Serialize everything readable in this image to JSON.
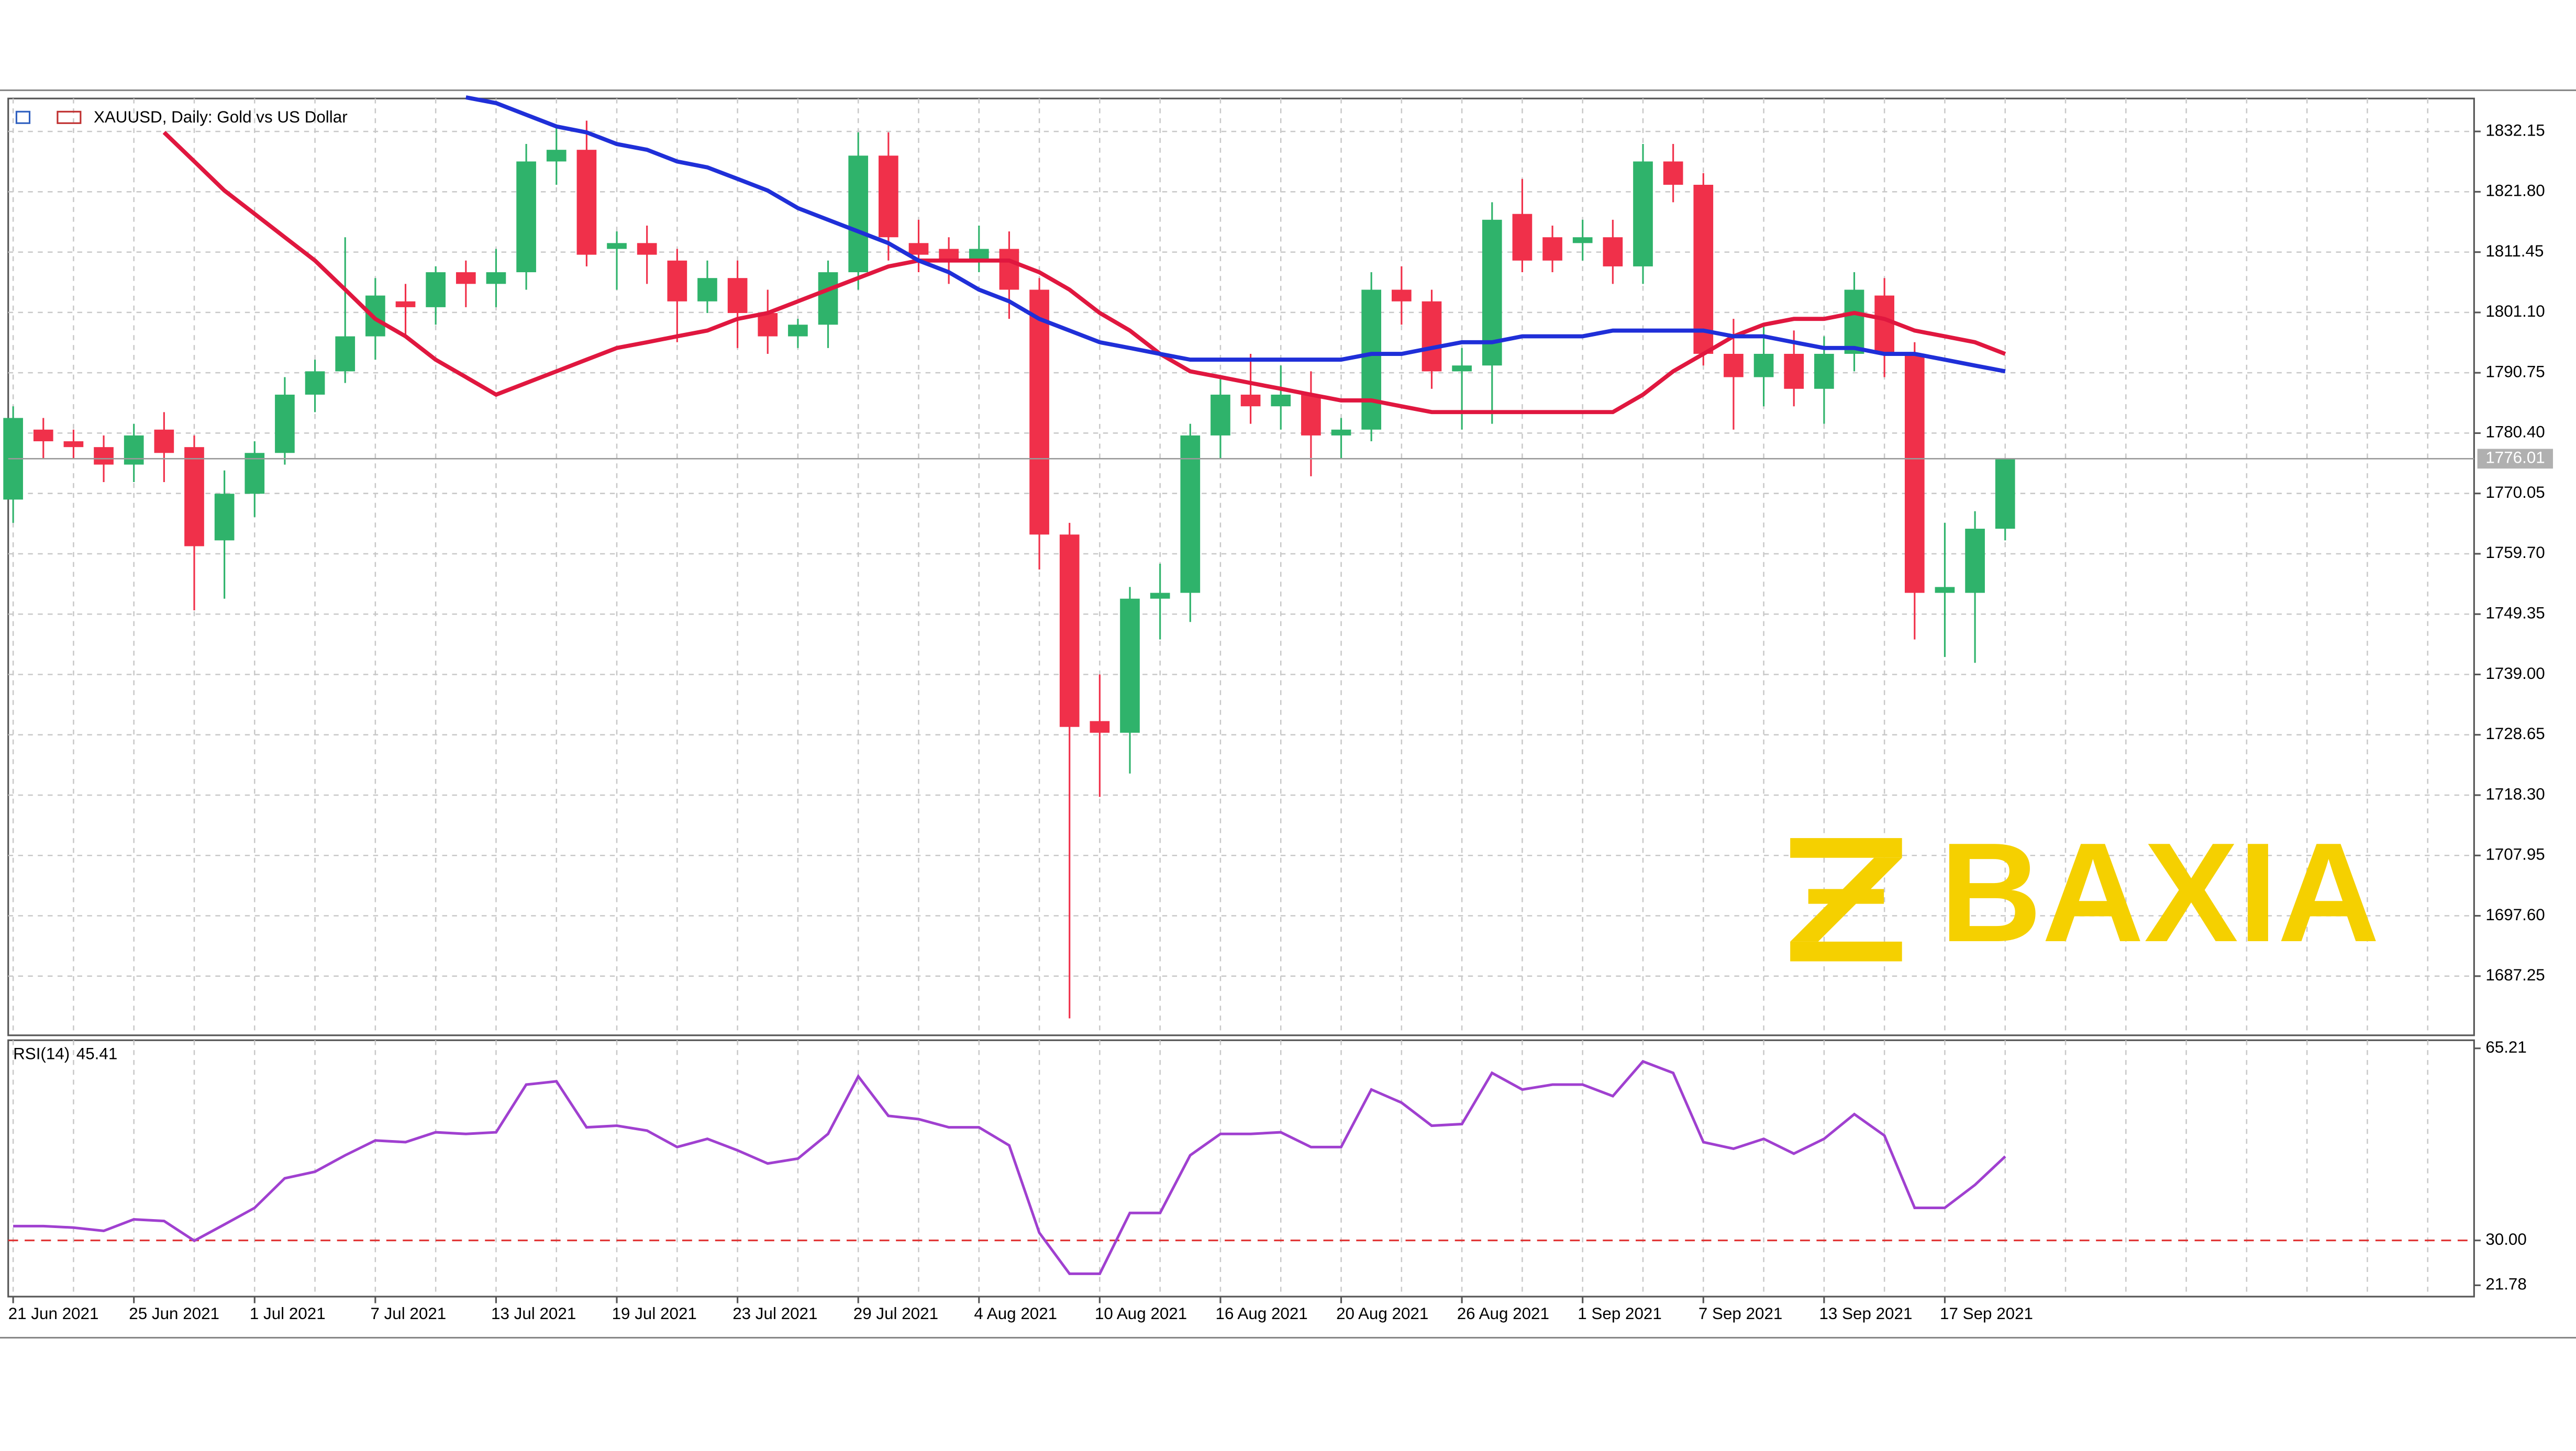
{
  "chart_data": [
    {
      "type": "candlestick",
      "title": "XAUUSD, Daily: Gold vs US Dollar",
      "watermark": "BAXIA",
      "categories": [
        "21 Jun 2021",
        null,
        null,
        null,
        "25 Jun 2021",
        null,
        null,
        null,
        "1 Jul 2021",
        null,
        null,
        null,
        "7 Jul 2021",
        null,
        null,
        null,
        "13 Jul 2021",
        null,
        null,
        null,
        "19 Jul 2021",
        null,
        null,
        null,
        "23 Jul 2021",
        null,
        null,
        null,
        "29 Jul 2021",
        null,
        null,
        null,
        "4 Aug 2021",
        null,
        null,
        null,
        "10 Aug 2021",
        null,
        null,
        null,
        "16 Aug 2021",
        null,
        null,
        null,
        "20 Aug 2021",
        null,
        null,
        null,
        "26 Aug 2021",
        null,
        null,
        null,
        "1 Sep 2021",
        null,
        null,
        null,
        "7 Sep 2021",
        null,
        null,
        null,
        "13 Sep 2021",
        null,
        null,
        null,
        "17 Sep 2021",
        null,
        null
      ],
      "open": [
        1769,
        1781,
        1779,
        1778,
        1775,
        1781,
        1778,
        1762,
        1770,
        1777,
        1787,
        1791,
        1797,
        1803,
        1802,
        1808,
        1806,
        1808,
        1827,
        1829,
        1812,
        1813,
        1810,
        1803,
        1807,
        1801,
        1797,
        1799,
        1808,
        1828,
        1813,
        1812,
        1810,
        1812,
        1805,
        1763,
        1731,
        1729,
        1752,
        1753,
        1780,
        1787,
        1785,
        1787,
        1780,
        1781,
        1805,
        1803,
        1791,
        1792,
        1818,
        1814,
        1813,
        1814,
        1809,
        1827,
        1823,
        1794,
        1790,
        1794,
        1788,
        1794,
        1804,
        1794,
        1753,
        1753,
        1764
      ],
      "high": [
        1785,
        1783,
        1781,
        1780,
        1782,
        1784,
        1780,
        1774,
        1779,
        1790,
        1793,
        1814,
        1807,
        1806,
        1809,
        1810,
        1812,
        1830,
        1833,
        1834,
        1815,
        1816,
        1812,
        1810,
        1810,
        1805,
        1800,
        1810,
        1832,
        1832,
        1817,
        1814,
        1816,
        1815,
        1807,
        1765,
        1739,
        1754,
        1758,
        1782,
        1790,
        1794,
        1792,
        1791,
        1783,
        1808,
        1809,
        1805,
        1795,
        1820,
        1824,
        1816,
        1817,
        1817,
        1830,
        1830,
        1825,
        1800,
        1799,
        1798,
        1797,
        1808,
        1807,
        1796,
        1765,
        1767,
        1776
      ],
      "low": [
        1765,
        1776,
        1776,
        1772,
        1772,
        1772,
        1750,
        1752,
        1766,
        1775,
        1784,
        1789,
        1793,
        1797,
        1799,
        1802,
        1802,
        1805,
        1823,
        1809,
        1805,
        1806,
        1796,
        1801,
        1795,
        1794,
        1795,
        1795,
        1805,
        1810,
        1808,
        1806,
        1808,
        1800,
        1757,
        1680,
        1718,
        1722,
        1745,
        1748,
        1776,
        1782,
        1781,
        1773,
        1776,
        1779,
        1799,
        1788,
        1781,
        1782,
        1808,
        1808,
        1810,
        1806,
        1806,
        1820,
        1792,
        1781,
        1785,
        1785,
        1782,
        1791,
        1790,
        1745,
        1742,
        1741,
        1762
      ],
      "close": [
        1783,
        1779,
        1778,
        1775,
        1780,
        1777,
        1761,
        1770,
        1777,
        1787,
        1791,
        1797,
        1804,
        1802,
        1808,
        1806,
        1808,
        1827,
        1829,
        1811,
        1813,
        1811,
        1803,
        1807,
        1801,
        1797,
        1799,
        1808,
        1828,
        1814,
        1811,
        1810,
        1812,
        1805,
        1763,
        1730,
        1729,
        1752,
        1753,
        1780,
        1787,
        1785,
        1787,
        1780,
        1781,
        1805,
        1803,
        1791,
        1792,
        1817,
        1810,
        1810,
        1814,
        1809,
        1827,
        1823,
        1794,
        1790,
        1794,
        1788,
        1794,
        1805,
        1794,
        1753,
        1754,
        1764,
        1776
      ],
      "up_color": "#2fb36b",
      "down_color": "#f0304a",
      "series": [
        {
          "color": "#e0173f",
          "values": [
            null,
            null,
            null,
            null,
            null,
            1832,
            1827,
            1822,
            1818,
            1814,
            1810,
            1805,
            1800,
            1797,
            1793,
            1790,
            1787,
            1789,
            1791,
            1793,
            1795,
            1796,
            1797,
            1798,
            1800,
            1801,
            1803,
            1805,
            1807,
            1809,
            1810,
            1810,
            1810,
            1810,
            1808,
            1805,
            1801,
            1798,
            1794,
            1791,
            1790,
            1789,
            1788,
            1787,
            1786,
            1786,
            1785,
            1784,
            1784,
            1784,
            1784,
            1784,
            1784,
            1784,
            1787,
            1791,
            1794,
            1797,
            1799,
            1800,
            1800,
            1801,
            1800,
            1798,
            1797,
            1796,
            1794
          ]
        },
        {
          "color": "#1f2fd8",
          "values": [
            null,
            null,
            null,
            null,
            null,
            null,
            null,
            null,
            null,
            null,
            null,
            null,
            null,
            null,
            null,
            1838,
            1837,
            1835,
            1833,
            1832,
            1830,
            1829,
            1827,
            1826,
            1824,
            1822,
            1819,
            1817,
            1815,
            1813,
            1810,
            1808,
            1805,
            1803,
            1800,
            1798,
            1796,
            1795,
            1794,
            1793,
            1793,
            1793,
            1793,
            1793,
            1793,
            1794,
            1794,
            1795,
            1796,
            1796,
            1797,
            1797,
            1797,
            1798,
            1798,
            1798,
            1798,
            1797,
            1797,
            1796,
            1795,
            1795,
            1794,
            1794,
            1793,
            1792,
            1791
          ]
        }
      ],
      "last_price": 1776.01,
      "ylim": [
        1677.1,
        1837.8
      ],
      "yticks": [
        1832.15,
        {
          "value": 1821.8,
          "label": "1821.80"
        },
        1811.45,
        {
          "value": 1801.1,
          "label": "1801.10"
        },
        1790.75,
        {
          "value": 1780.4,
          "label": "1780.40"
        },
        1770.05,
        {
          "value": 1759.7,
          "label": "1759.70"
        },
        1749.35,
        {
          "value": 1739,
          "label": "1739.00"
        },
        1728.65,
        {
          "value": 1718.3,
          "label": "1718.30"
        },
        1707.95,
        {
          "value": 1697.6,
          "label": "1697.60"
        },
        1687.25
      ],
      "grid": true
    },
    {
      "type": "line",
      "series": [
        {
          "name": "RSI(14)",
          "color": "#a040d0",
          "values": [
            32.64,
            32.64,
            32.34,
            31.74,
            33.85,
            33.55,
            29.93,
            32.94,
            35.96,
            41.39,
            42.59,
            45.61,
            48.32,
            48.02,
            49.83,
            49.53,
            49.83,
            58.57,
            59.18,
            50.73,
            51.04,
            50.13,
            47.12,
            48.62,
            46.51,
            44.1,
            45.0,
            49.53,
            60.08,
            52.85,
            52.24,
            50.73,
            50.73,
            47.42,
            31.43,
            23.9,
            23.9,
            35.05,
            35.05,
            45.61,
            49.53,
            49.53,
            49.83,
            47.12,
            47.12,
            57.67,
            55.26,
            51.04,
            51.34,
            60.69,
            57.67,
            58.57,
            58.57,
            56.46,
            62.8,
            60.69,
            48.02,
            46.81,
            48.62,
            45.91,
            48.62,
            53.15,
            49.23,
            35.96,
            35.96,
            40.18,
            45.41
          ]
        }
      ],
      "levels": [
        30
      ],
      "level_color": "#e03030",
      "ylim": [
        19.7,
        66.7
      ],
      "yticks": [
        65.21,
        {
          "value": 30,
          "label": "30.00"
        },
        21.78
      ],
      "grid": false
    }
  ]
}
